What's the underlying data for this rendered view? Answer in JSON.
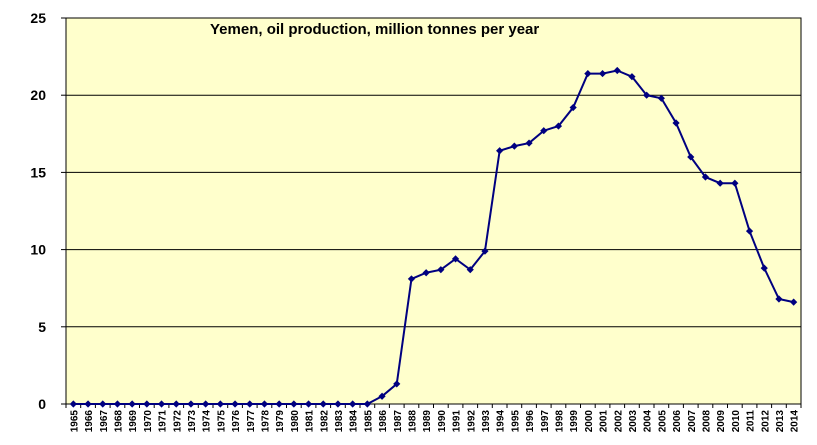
{
  "chart_data": {
    "type": "line",
    "title": "Yemen, oil production, million tonnes per year",
    "xlabel": "",
    "ylabel": "",
    "ylim": [
      0,
      25
    ],
    "y_ticks": [
      0,
      5,
      10,
      15,
      20,
      25
    ],
    "grid": true,
    "legend": "none",
    "colors": {
      "plot_background": "#FFFFCC",
      "line": "#000080",
      "marker": "#000080",
      "gridline": "#000000"
    },
    "categories": [
      "1965",
      "1966",
      "1967",
      "1968",
      "1969",
      "1970",
      "1971",
      "1972",
      "1973",
      "1974",
      "1975",
      "1976",
      "1977",
      "1978",
      "1979",
      "1980",
      "1981",
      "1982",
      "1983",
      "1984",
      "1985",
      "1986",
      "1987",
      "1988",
      "1989",
      "1990",
      "1991",
      "1992",
      "1993",
      "1994",
      "1995",
      "1996",
      "1997",
      "1998",
      "1999",
      "2000",
      "2001",
      "2002",
      "2003",
      "2004",
      "2005",
      "2006",
      "2007",
      "2008",
      "2009",
      "2010",
      "2011",
      "2012",
      "2013",
      "2014"
    ],
    "series": [
      {
        "values": [
          0,
          0,
          0,
          0,
          0,
          0,
          0,
          0,
          0,
          0,
          0,
          0,
          0,
          0,
          0,
          0,
          0,
          0,
          0,
          0,
          0,
          0.5,
          1.3,
          8.1,
          8.5,
          8.7,
          9.4,
          8.7,
          9.9,
          16.4,
          16.7,
          16.9,
          17.7,
          18.0,
          19.2,
          21.4,
          21.4,
          21.6,
          21.2,
          20.0,
          19.8,
          18.2,
          16.0,
          14.7,
          14.3,
          14.3,
          11.2,
          8.8,
          6.8,
          6.6
        ]
      }
    ]
  }
}
